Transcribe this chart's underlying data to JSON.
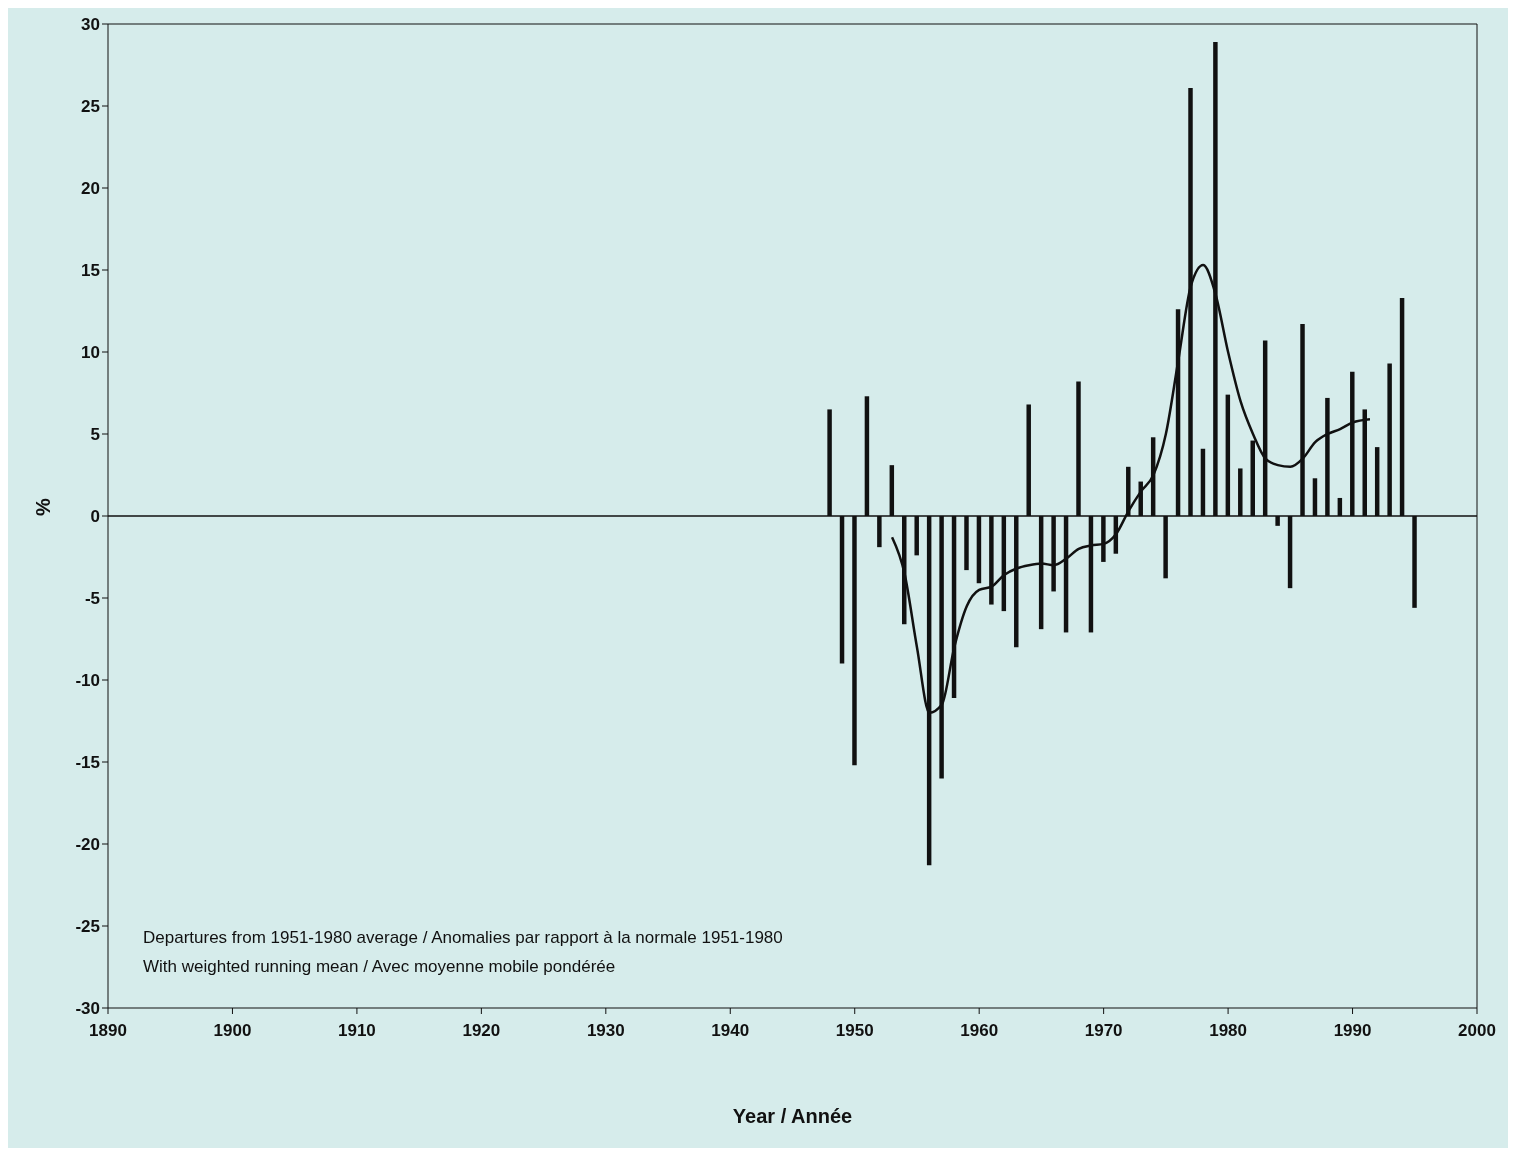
{
  "chart_data": {
    "type": "bar",
    "xlabel": "Year / Année",
    "ylabel": "%",
    "annotations": [
      "Departures from 1951-1980 average / Anomalies par rapport à la normale 1951-1980",
      "With weighted running mean / Avec moyenne mobile pondérée"
    ],
    "x": [
      1948,
      1949,
      1950,
      1951,
      1952,
      1953,
      1954,
      1955,
      1956,
      1957,
      1958,
      1959,
      1960,
      1961,
      1962,
      1963,
      1964,
      1965,
      1966,
      1967,
      1968,
      1969,
      1970,
      1971,
      1972,
      1973,
      1974,
      1975,
      1976,
      1977,
      1978,
      1979,
      1980,
      1981,
      1982,
      1983,
      1984,
      1985,
      1986,
      1987,
      1988,
      1989,
      1990,
      1991,
      1992,
      1993,
      1994,
      1995
    ],
    "series": [
      {
        "color": "#111111",
        "values": [
          6.5,
          -9.0,
          -15.2,
          7.3,
          -1.9,
          3.1,
          -6.6,
          -2.4,
          -21.3,
          -16.0,
          -11.1,
          -3.3,
          -4.1,
          -5.4,
          -5.8,
          -8.0,
          6.8,
          -6.9,
          -4.6,
          -7.1,
          8.2,
          -7.1,
          -2.8,
          -2.3,
          3.0,
          2.1,
          4.8,
          -3.8,
          12.6,
          26.1,
          4.1,
          28.9,
          7.4,
          2.9,
          4.6,
          10.7,
          -0.6,
          -4.4,
          11.7,
          2.3,
          7.2,
          1.1,
          8.8,
          6.5,
          4.2,
          9.3,
          13.3,
          -5.6
        ]
      },
      {
        "type": "line",
        "color": "#111111",
        "x": [
          1953,
          1954,
          1955,
          1956,
          1957,
          1958,
          1959,
          1960,
          1961,
          1962,
          1963,
          1964,
          1965,
          1966,
          1967,
          1968,
          1969,
          1970,
          1971,
          1972,
          1973,
          1974,
          1975,
          1976,
          1977,
          1978,
          1979,
          1980,
          1981,
          1982,
          1983,
          1984,
          1985,
          1986,
          1987,
          1988,
          1989,
          1990,
          1991.4
        ],
        "values": [
          -1.3,
          -3.5,
          -8,
          -12,
          -11.5,
          -8,
          -5.5,
          -4.5,
          -4.3,
          -3.6,
          -3.2,
          -3,
          -2.9,
          -3,
          -2.6,
          -2,
          -1.8,
          -1.7,
          -1.1,
          0.3,
          1.5,
          2.5,
          5,
          9.5,
          14,
          15.3,
          13.5,
          10,
          7,
          5,
          3.5,
          3.1,
          3,
          3.5,
          4.5,
          5,
          5.3,
          5.7,
          5.9
        ]
      }
    ],
    "xlim": [
      1890,
      2000
    ],
    "xticks": [
      1890,
      1900,
      1910,
      1920,
      1930,
      1940,
      1950,
      1960,
      1970,
      1980,
      1990,
      2000
    ],
    "ylim": [
      -30,
      30
    ],
    "yticks": [
      -30,
      -25,
      -20,
      -15,
      -10,
      -5,
      0,
      5,
      10,
      15,
      20,
      25,
      30
    ],
    "ref_lines": [
      {
        "axis": "y",
        "value": 0,
        "color": "#111111"
      }
    ],
    "grid": false,
    "legend": false,
    "marker": "none",
    "line_style": "solid"
  }
}
